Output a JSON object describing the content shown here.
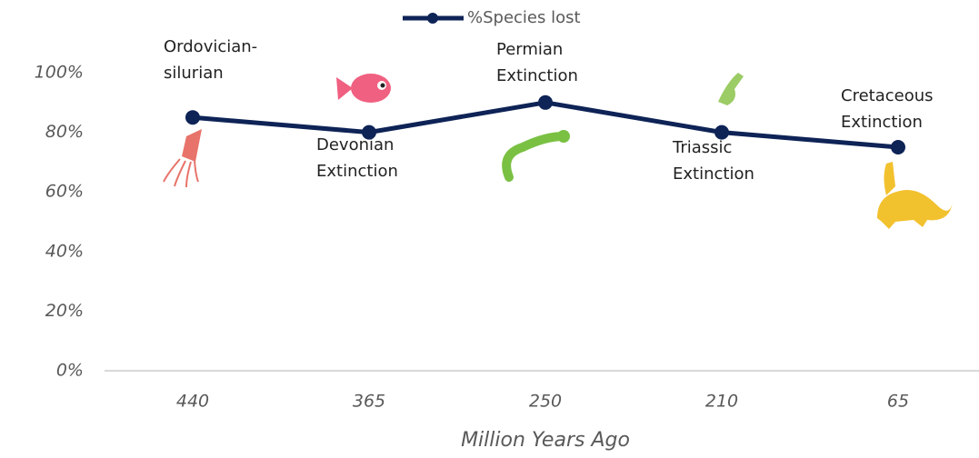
{
  "chart_data": {
    "type": "line",
    "x_label": "Million Years Ago",
    "categories": [
      "440",
      "365",
      "250",
      "210",
      "65"
    ],
    "series": [
      {
        "name": "%Species lost",
        "color": "#0e2356",
        "values": [
          85,
          80,
          90,
          80,
          75
        ]
      }
    ],
    "annotations": [
      [
        "Ordovician-",
        "silurian"
      ],
      [
        "Devonian",
        "Extinction"
      ],
      [
        "Permian",
        "Extinction"
      ],
      [
        "Triassic",
        "Extinction"
      ],
      [
        "Cretaceous",
        "Extinction"
      ]
    ],
    "ylim": [
      0,
      100
    ],
    "yticks": [
      {
        "value": 0,
        "label": "0%"
      },
      {
        "value": 20,
        "label": "20%"
      },
      {
        "value": 40,
        "label": "40%"
      },
      {
        "value": 60,
        "label": "60%"
      },
      {
        "value": 80,
        "label": "80%"
      },
      {
        "value": 100,
        "label": "100%"
      }
    ],
    "grid": false,
    "legend": "top"
  }
}
